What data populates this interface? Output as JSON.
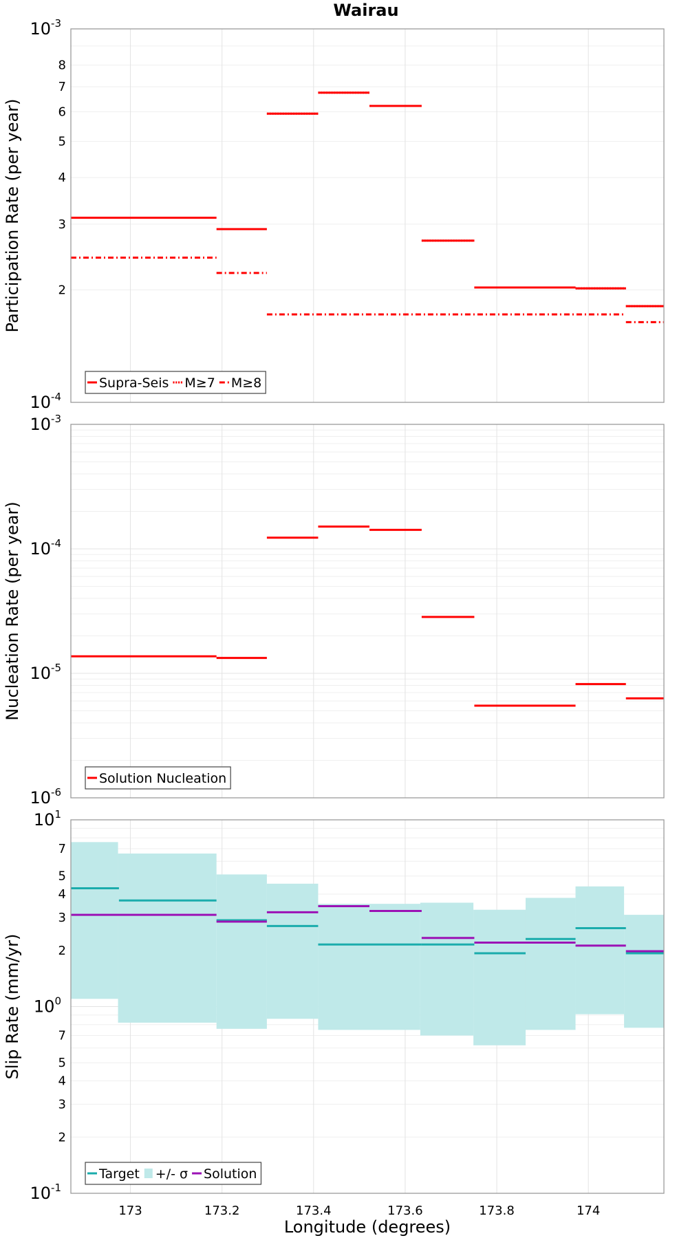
{
  "title": "Wairau",
  "chart_data": [
    {
      "type": "line",
      "name": "participation",
      "title": "Wairau",
      "ylabel": "Participation Rate (per year)",
      "xlabel": "",
      "xlim": [
        172.87,
        174.165
      ],
      "ylim": [
        0.0001,
        0.001
      ],
      "yscale": "log",
      "grid": true,
      "legend_position": "bottom-left",
      "x_ticks": [
        "173",
        "173.2",
        "173.4",
        "173.6",
        "173.8",
        "174"
      ],
      "y_decade_ticks": [
        {
          "base": "10",
          "exp": "-3",
          "value": 0.001
        },
        {
          "base": "10",
          "exp": "-4",
          "value": 0.0001
        }
      ],
      "y_minor_labels": [
        {
          "label": "8",
          "value": 0.0008
        },
        {
          "label": "7",
          "value": 0.0007
        },
        {
          "label": "6",
          "value": 0.0006
        },
        {
          "label": "5",
          "value": 0.0005
        },
        {
          "label": "4",
          "value": 0.0004
        },
        {
          "label": "3",
          "value": 0.0003
        },
        {
          "label": "2",
          "value": 0.0002
        }
      ],
      "legend": [
        {
          "label": "Supra-Seis",
          "color": "#ff0000",
          "style": "solid"
        },
        {
          "label": "M≥7",
          "color": "#ff0000",
          "style": "dotted"
        },
        {
          "label": "M≥8",
          "color": "#ff0000",
          "style": "dashdot"
        }
      ],
      "series": [
        {
          "name": "Supra-Seis",
          "color": "#ff0000",
          "style": "solid",
          "segments": [
            {
              "x0": 172.87,
              "x1": 173.188,
              "y": 0.000312
            },
            {
              "x0": 173.188,
              "x1": 173.298,
              "y": 0.000291
            },
            {
              "x0": 173.298,
              "x1": 173.41,
              "y": 0.000593
            },
            {
              "x0": 173.41,
              "x1": 173.522,
              "y": 0.000675
            },
            {
              "x0": 173.522,
              "x1": 173.636,
              "y": 0.000622
            },
            {
              "x0": 173.636,
              "x1": 173.751,
              "y": 0.000271
            },
            {
              "x0": 173.751,
              "x1": 173.972,
              "y": 0.000203
            },
            {
              "x0": 173.972,
              "x1": 174.082,
              "y": 0.000202
            },
            {
              "x0": 174.082,
              "x1": 174.165,
              "y": 0.000181
            }
          ]
        },
        {
          "name": "M≥7",
          "color": "#ff0000",
          "style": "dotted",
          "segments": [
            {
              "x0": 173.298,
              "x1": 173.41,
              "y": 0.000593
            },
            {
              "x0": 173.41,
              "x1": 173.522,
              "y": 0.000675
            },
            {
              "x0": 173.522,
              "x1": 173.636,
              "y": 0.000622
            },
            {
              "x0": 173.636,
              "x1": 173.751,
              "y": 0.000271
            },
            {
              "x0": 173.751,
              "x1": 173.972,
              "y": 0.000203
            },
            {
              "x0": 173.972,
              "x1": 174.082,
              "y": 0.000202
            },
            {
              "x0": 174.082,
              "x1": 174.165,
              "y": 0.000181
            }
          ]
        },
        {
          "name": "M≥8",
          "color": "#ff0000",
          "style": "dashdot",
          "segments": [
            {
              "x0": 172.87,
              "x1": 173.188,
              "y": 0.000244
            },
            {
              "x0": 173.188,
              "x1": 173.298,
              "y": 0.000222
            },
            {
              "x0": 173.298,
              "x1": 174.082,
              "y": 0.000172
            },
            {
              "x0": 174.082,
              "x1": 174.165,
              "y": 0.000164
            }
          ]
        }
      ]
    },
    {
      "type": "line",
      "name": "nucleation",
      "title": "",
      "ylabel": "Nucleation Rate (per year)",
      "xlabel": "",
      "xlim": [
        172.87,
        174.165
      ],
      "ylim": [
        1e-06,
        0.001
      ],
      "yscale": "log",
      "grid": true,
      "legend_position": "bottom-left",
      "x_ticks": [
        "173",
        "173.2",
        "173.4",
        "173.6",
        "173.8",
        "174"
      ],
      "y_decade_ticks": [
        {
          "base": "10",
          "exp": "-3",
          "value": 0.001
        },
        {
          "base": "10",
          "exp": "-4",
          "value": 0.0001
        },
        {
          "base": "10",
          "exp": "-5",
          "value": 1e-05
        },
        {
          "base": "10",
          "exp": "-6",
          "value": 1e-06
        }
      ],
      "y_minor_labels": [],
      "legend": [
        {
          "label": "Solution Nucleation",
          "color": "#ff0000",
          "style": "solid"
        }
      ],
      "series": [
        {
          "name": "Solution Nucleation",
          "color": "#ff0000",
          "style": "solid",
          "segments": [
            {
              "x0": 172.87,
              "x1": 173.188,
              "y": 1.37e-05
            },
            {
              "x0": 173.188,
              "x1": 173.298,
              "y": 1.33e-05
            },
            {
              "x0": 173.298,
              "x1": 173.41,
              "y": 0.000123
            },
            {
              "x0": 173.41,
              "x1": 173.522,
              "y": 0.000151
            },
            {
              "x0": 173.522,
              "x1": 173.636,
              "y": 0.000142
            },
            {
              "x0": 173.636,
              "x1": 173.751,
              "y": 2.84e-05
            },
            {
              "x0": 173.751,
              "x1": 173.972,
              "y": 5.5e-06
            },
            {
              "x0": 173.972,
              "x1": 174.082,
              "y": 8.2e-06
            },
            {
              "x0": 174.082,
              "x1": 174.165,
              "y": 6.3e-06
            }
          ]
        }
      ]
    },
    {
      "type": "line",
      "name": "slip",
      "title": "",
      "ylabel": "Slip Rate (mm/yr)",
      "xlabel": "Longitude (degrees)",
      "xlim": [
        172.87,
        174.165
      ],
      "ylim": [
        0.1,
        10
      ],
      "yscale": "log",
      "grid": true,
      "legend_position": "bottom-left",
      "x_ticks": [
        "173",
        "173.2",
        "173.4",
        "173.6",
        "173.8",
        "174"
      ],
      "y_decade_ticks": [
        {
          "base": "10",
          "exp": "1",
          "value": 10
        },
        {
          "base": "10",
          "exp": "0",
          "value": 1
        },
        {
          "base": "10",
          "exp": "-1",
          "value": 0.1
        }
      ],
      "y_minor_labels": [
        {
          "label": "7",
          "value": 7
        },
        {
          "label": "5",
          "value": 5
        },
        {
          "label": "4",
          "value": 4
        },
        {
          "label": "3",
          "value": 3
        },
        {
          "label": "2",
          "value": 2
        },
        {
          "label": "7",
          "value": 0.7
        },
        {
          "label": "5",
          "value": 0.5
        },
        {
          "label": "4",
          "value": 0.4
        },
        {
          "label": "3",
          "value": 0.3
        },
        {
          "label": "2",
          "value": 0.2
        }
      ],
      "legend": [
        {
          "label": "Target",
          "color": "#1aacac",
          "style": "solid"
        },
        {
          "label": "+/- σ",
          "color": "#bfe9e9",
          "style": "band"
        },
        {
          "label": "Solution",
          "color": "#9b11b5",
          "style": "solid"
        }
      ],
      "band": {
        "name": "+/- σ",
        "color": "#bfe9e9",
        "segments": [
          {
            "x0": 172.87,
            "x1": 172.973,
            "lo": 1.1,
            "hi": 7.6
          },
          {
            "x0": 172.973,
            "x1": 173.188,
            "lo": 0.82,
            "hi": 6.6
          },
          {
            "x0": 173.188,
            "x1": 173.298,
            "lo": 0.76,
            "hi": 5.1
          },
          {
            "x0": 173.298,
            "x1": 173.41,
            "lo": 0.86,
            "hi": 4.55
          },
          {
            "x0": 173.41,
            "x1": 173.633,
            "lo": 0.75,
            "hi": 3.55
          },
          {
            "x0": 173.633,
            "x1": 173.749,
            "lo": 0.7,
            "hi": 3.6
          },
          {
            "x0": 173.749,
            "x1": 173.863,
            "lo": 0.62,
            "hi": 3.3
          },
          {
            "x0": 173.863,
            "x1": 173.972,
            "lo": 0.75,
            "hi": 3.82
          },
          {
            "x0": 173.972,
            "x1": 174.078,
            "lo": 0.91,
            "hi": 4.4
          },
          {
            "x0": 174.078,
            "x1": 174.165,
            "lo": 0.77,
            "hi": 3.1
          }
        ]
      },
      "series": [
        {
          "name": "Target",
          "color": "#1aacac",
          "style": "solid",
          "segments": [
            {
              "x0": 172.87,
              "x1": 172.975,
              "y": 4.3
            },
            {
              "x0": 172.975,
              "x1": 173.188,
              "y": 3.7
            },
            {
              "x0": 173.188,
              "x1": 173.298,
              "y": 2.9
            },
            {
              "x0": 173.298,
              "x1": 173.41,
              "y": 2.7
            },
            {
              "x0": 173.41,
              "x1": 173.636,
              "y": 2.15
            },
            {
              "x0": 173.636,
              "x1": 173.751,
              "y": 2.15
            },
            {
              "x0": 173.751,
              "x1": 173.863,
              "y": 1.93
            },
            {
              "x0": 173.863,
              "x1": 173.972,
              "y": 2.3
            },
            {
              "x0": 173.972,
              "x1": 174.082,
              "y": 2.63
            },
            {
              "x0": 174.082,
              "x1": 174.165,
              "y": 1.93
            }
          ]
        },
        {
          "name": "Solution",
          "color": "#9b11b5",
          "style": "solid",
          "segments": [
            {
              "x0": 172.87,
              "x1": 173.188,
              "y": 3.1
            },
            {
              "x0": 173.188,
              "x1": 173.298,
              "y": 2.85
            },
            {
              "x0": 173.298,
              "x1": 173.41,
              "y": 3.2
            },
            {
              "x0": 173.41,
              "x1": 173.522,
              "y": 3.45
            },
            {
              "x0": 173.522,
              "x1": 173.636,
              "y": 3.25
            },
            {
              "x0": 173.636,
              "x1": 173.751,
              "y": 2.33
            },
            {
              "x0": 173.751,
              "x1": 173.972,
              "y": 2.2
            },
            {
              "x0": 173.972,
              "x1": 174.082,
              "y": 2.12
            },
            {
              "x0": 174.082,
              "x1": 174.165,
              "y": 1.98
            }
          ]
        }
      ]
    }
  ]
}
